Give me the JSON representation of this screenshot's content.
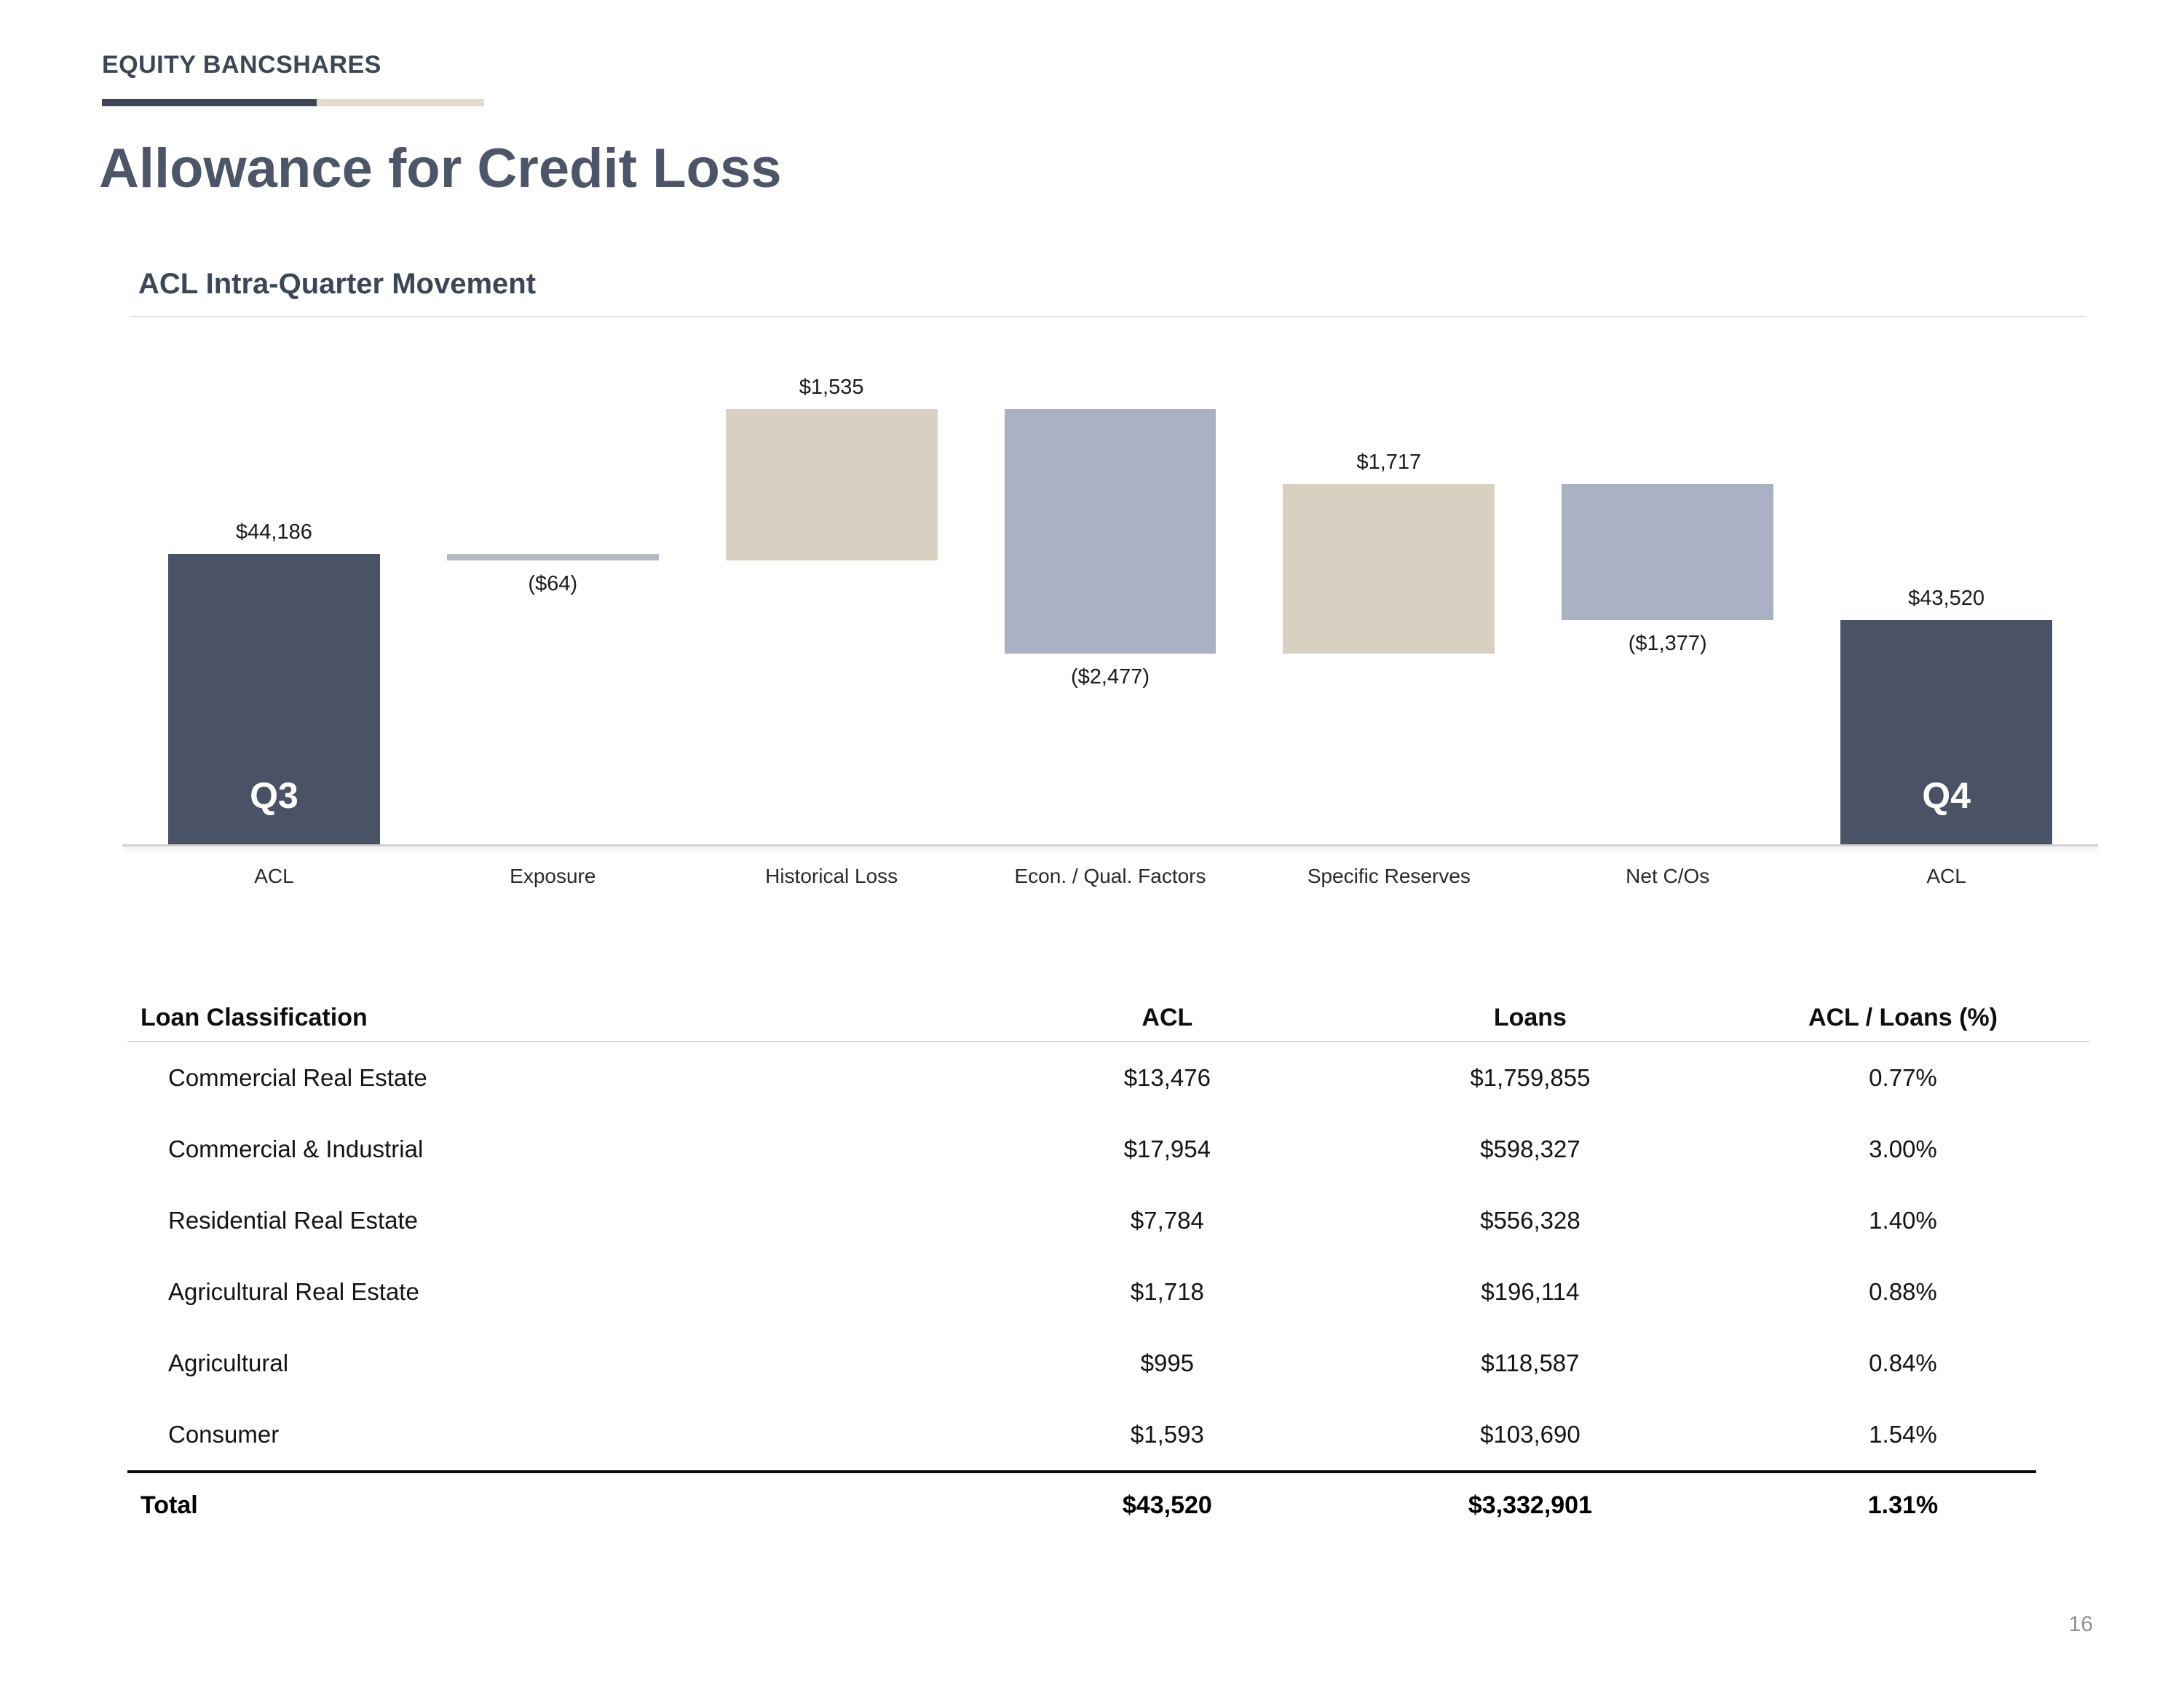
{
  "page": {
    "brand": "EQUITY BANCSHARES",
    "title": "Allowance for Credit Loss",
    "page_number": "16"
  },
  "chart_data": {
    "type": "waterfall",
    "title": "ACL Intra-Quarter Movement",
    "categories": [
      "ACL",
      "Exposure",
      "Historical Loss",
      "Econ. / Qual. Factors",
      "Specific Reserves",
      "Net C/Os",
      "ACL"
    ],
    "start_label": "Q3",
    "end_label": "Q4",
    "bars": [
      {
        "category": "ACL",
        "kind": "total",
        "value": 44186,
        "label": "$44,186",
        "inner_label": "Q3",
        "label_position": "above"
      },
      {
        "category": "Exposure",
        "kind": "flat",
        "value": -64,
        "label": "($64)",
        "label_position": "below"
      },
      {
        "category": "Historical Loss",
        "kind": "increase",
        "value": 1535,
        "label": "$1,535",
        "label_position": "above"
      },
      {
        "category": "Econ. / Qual. Factors",
        "kind": "decrease",
        "value": -2477,
        "label": "($2,477)",
        "label_position": "below"
      },
      {
        "category": "Specific Reserves",
        "kind": "increase",
        "value": 1717,
        "label": "$1,717",
        "label_position": "above"
      },
      {
        "category": "Net C/Os",
        "kind": "decrease",
        "value": -1377,
        "label": "($1,377)",
        "label_position": "below"
      },
      {
        "category": "ACL",
        "kind": "total",
        "value": 43520,
        "label": "$43,520",
        "inner_label": "Q4",
        "label_position": "above"
      }
    ],
    "colors": {
      "total": "#4a5265",
      "increase": "#d8d1c1",
      "decrease": "#a9b1c3",
      "flat": "#b7bbc4"
    },
    "axis": {
      "baseline_value": 41250,
      "top_value": 46000,
      "gridlines": false
    }
  },
  "table": {
    "headers": [
      "Loan Classification",
      "ACL",
      "Loans",
      "ACL / Loans (%)"
    ],
    "rows": [
      [
        "Commercial Real Estate",
        "$13,476",
        "$1,759,855",
        "0.77%"
      ],
      [
        "Commercial & Industrial",
        "$17,954",
        "$598,327",
        "3.00%"
      ],
      [
        "Residential Real Estate",
        "$7,784",
        "$556,328",
        "1.40%"
      ],
      [
        "Agricultural Real Estate",
        "$1,718",
        "$196,114",
        "0.88%"
      ],
      [
        "Agricultural",
        "$995",
        "$118,587",
        "0.84%"
      ],
      [
        "Consumer",
        "$1,593",
        "$103,690",
        "1.54%"
      ]
    ],
    "total": [
      "Total",
      "$43,520",
      "$3,332,901",
      "1.31%"
    ]
  }
}
